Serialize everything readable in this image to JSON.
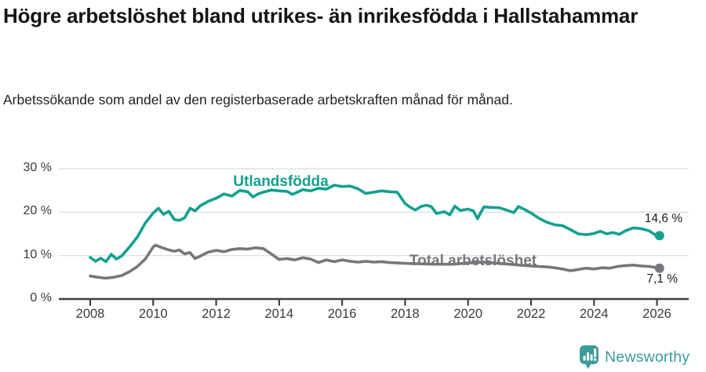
{
  "header": {
    "title": "Högre arbetslöshet bland utrikes- än inrikesfödda i Hallstahammar",
    "subtitle": "Arbetssökande som andel av den registerbaserade arbetskraften månad för månad."
  },
  "footer": {
    "brand": "Newsworthy",
    "brand_color": "#3b9d99",
    "logo_icon": "bar-chart-exclamation-badge-icon"
  },
  "chart_data": {
    "type": "line",
    "title": "Högre arbetslöshet bland utrikes- än inrikesfödda i Hallstahammar",
    "subtitle": "Arbetssökande som andel av den registerbaserade arbetskraften månad för månad.",
    "xlabel": "",
    "ylabel": "",
    "grid": "horizontal",
    "legend_position": "inline-labels",
    "xlim": [
      2007.0,
      2027.0
    ],
    "ylim": [
      0,
      30
    ],
    "y_ticks": [
      0,
      10,
      20,
      30
    ],
    "y_tick_labels": [
      "0 %",
      "10 %",
      "20 %",
      "30 %"
    ],
    "x_ticks": [
      2008,
      2010,
      2012,
      2014,
      2016,
      2018,
      2020,
      2022,
      2024,
      2026
    ],
    "x_tick_labels": [
      "2008",
      "2010",
      "2012",
      "2014",
      "2016",
      "2018",
      "2020",
      "2022",
      "2024",
      "2026"
    ],
    "axis_color": "#3f3f3f",
    "grid_color": "#d9d9d9",
    "series": [
      {
        "name": "Utlandsfödda",
        "color": "#13a08f",
        "end_label": "14,6 %",
        "end_value": 14.6,
        "label_anchor_data_coords": [
          2014.05,
          26.7
        ],
        "points": [
          [
            2008.0,
            9.6
          ],
          [
            2008.17,
            8.7
          ],
          [
            2008.33,
            9.4
          ],
          [
            2008.5,
            8.6
          ],
          [
            2008.67,
            10.3
          ],
          [
            2008.83,
            9.2
          ],
          [
            2009.0,
            9.9
          ],
          [
            2009.25,
            12.0
          ],
          [
            2009.5,
            14.3
          ],
          [
            2009.75,
            17.5
          ],
          [
            2010.0,
            19.8
          ],
          [
            2010.17,
            20.9
          ],
          [
            2010.33,
            19.5
          ],
          [
            2010.5,
            20.2
          ],
          [
            2010.67,
            18.3
          ],
          [
            2010.83,
            18.1
          ],
          [
            2011.0,
            18.7
          ],
          [
            2011.17,
            20.9
          ],
          [
            2011.33,
            20.3
          ],
          [
            2011.5,
            21.5
          ],
          [
            2011.75,
            22.5
          ],
          [
            2012.0,
            23.2
          ],
          [
            2012.25,
            24.2
          ],
          [
            2012.5,
            23.7
          ],
          [
            2012.75,
            25.0
          ],
          [
            2013.0,
            24.7
          ],
          [
            2013.17,
            23.5
          ],
          [
            2013.33,
            24.2
          ],
          [
            2013.5,
            24.6
          ],
          [
            2013.75,
            25.1
          ],
          [
            2014.0,
            24.9
          ],
          [
            2014.25,
            24.8
          ],
          [
            2014.42,
            24.1
          ],
          [
            2014.58,
            24.6
          ],
          [
            2014.75,
            25.2
          ],
          [
            2015.0,
            24.9
          ],
          [
            2015.25,
            25.5
          ],
          [
            2015.5,
            25.3
          ],
          [
            2015.75,
            26.2
          ],
          [
            2016.0,
            25.9
          ],
          [
            2016.25,
            26.0
          ],
          [
            2016.5,
            25.4
          ],
          [
            2016.75,
            24.3
          ],
          [
            2017.0,
            24.6
          ],
          [
            2017.25,
            24.9
          ],
          [
            2017.5,
            24.7
          ],
          [
            2017.75,
            24.6
          ],
          [
            2018.0,
            22.0
          ],
          [
            2018.17,
            21.1
          ],
          [
            2018.33,
            20.5
          ],
          [
            2018.5,
            21.3
          ],
          [
            2018.67,
            21.6
          ],
          [
            2018.83,
            21.3
          ],
          [
            2019.0,
            19.7
          ],
          [
            2019.25,
            20.1
          ],
          [
            2019.42,
            19.4
          ],
          [
            2019.58,
            21.4
          ],
          [
            2019.75,
            20.4
          ],
          [
            2020.0,
            20.7
          ],
          [
            2020.17,
            20.3
          ],
          [
            2020.3,
            18.5
          ],
          [
            2020.5,
            21.2
          ],
          [
            2020.75,
            21.1
          ],
          [
            2021.0,
            21.0
          ],
          [
            2021.25,
            20.4
          ],
          [
            2021.45,
            19.9
          ],
          [
            2021.6,
            21.3
          ],
          [
            2021.8,
            20.6
          ],
          [
            2022.0,
            19.8
          ],
          [
            2022.25,
            18.6
          ],
          [
            2022.5,
            17.7
          ],
          [
            2022.75,
            17.1
          ],
          [
            2023.0,
            16.9
          ],
          [
            2023.25,
            16.0
          ],
          [
            2023.5,
            15.0
          ],
          [
            2023.75,
            14.8
          ],
          [
            2024.0,
            15.1
          ],
          [
            2024.2,
            15.6
          ],
          [
            2024.4,
            15.0
          ],
          [
            2024.6,
            15.3
          ],
          [
            2024.8,
            14.9
          ],
          [
            2025.0,
            15.7
          ],
          [
            2025.25,
            16.4
          ],
          [
            2025.5,
            16.2
          ],
          [
            2025.75,
            15.7
          ],
          [
            2026.0,
            14.5
          ],
          [
            2026.08,
            14.6
          ]
        ]
      },
      {
        "name": "Total arbetslöshet",
        "color": "#76777b",
        "end_label": "7,1 %",
        "end_value": 7.1,
        "label_anchor_data_coords": [
          2020.1,
          8.4
        ],
        "points": [
          [
            2008.0,
            5.3
          ],
          [
            2008.25,
            5.0
          ],
          [
            2008.5,
            4.8
          ],
          [
            2008.75,
            5.0
          ],
          [
            2009.0,
            5.4
          ],
          [
            2009.25,
            6.3
          ],
          [
            2009.5,
            7.5
          ],
          [
            2009.75,
            9.2
          ],
          [
            2010.0,
            12.0
          ],
          [
            2010.08,
            12.4
          ],
          [
            2010.25,
            11.9
          ],
          [
            2010.5,
            11.3
          ],
          [
            2010.67,
            11.0
          ],
          [
            2010.83,
            11.3
          ],
          [
            2011.0,
            10.4
          ],
          [
            2011.17,
            10.7
          ],
          [
            2011.33,
            9.3
          ],
          [
            2011.5,
            9.9
          ],
          [
            2011.75,
            10.8
          ],
          [
            2012.0,
            11.2
          ],
          [
            2012.25,
            10.9
          ],
          [
            2012.5,
            11.4
          ],
          [
            2012.75,
            11.6
          ],
          [
            2013.0,
            11.5
          ],
          [
            2013.25,
            11.8
          ],
          [
            2013.5,
            11.6
          ],
          [
            2013.75,
            10.4
          ],
          [
            2014.0,
            9.1
          ],
          [
            2014.25,
            9.3
          ],
          [
            2014.5,
            9.0
          ],
          [
            2014.75,
            9.5
          ],
          [
            2015.0,
            9.2
          ],
          [
            2015.25,
            8.4
          ],
          [
            2015.5,
            9.0
          ],
          [
            2015.75,
            8.6
          ],
          [
            2016.0,
            9.0
          ],
          [
            2016.25,
            8.7
          ],
          [
            2016.5,
            8.5
          ],
          [
            2016.75,
            8.7
          ],
          [
            2017.0,
            8.5
          ],
          [
            2017.25,
            8.6
          ],
          [
            2017.5,
            8.4
          ],
          [
            2017.75,
            8.3
          ],
          [
            2018.0,
            8.2
          ],
          [
            2018.5,
            8.1
          ],
          [
            2019.0,
            8.0
          ],
          [
            2019.5,
            8.0
          ],
          [
            2020.0,
            8.3
          ],
          [
            2020.5,
            8.5
          ],
          [
            2021.0,
            8.2
          ],
          [
            2021.5,
            7.9
          ],
          [
            2022.0,
            7.6
          ],
          [
            2022.25,
            7.5
          ],
          [
            2022.5,
            7.4
          ],
          [
            2022.75,
            7.2
          ],
          [
            2023.0,
            6.9
          ],
          [
            2023.25,
            6.5
          ],
          [
            2023.5,
            6.8
          ],
          [
            2023.75,
            7.1
          ],
          [
            2024.0,
            6.9
          ],
          [
            2024.25,
            7.2
          ],
          [
            2024.5,
            7.1
          ],
          [
            2024.75,
            7.5
          ],
          [
            2025.0,
            7.7
          ],
          [
            2025.25,
            7.8
          ],
          [
            2025.5,
            7.6
          ],
          [
            2025.75,
            7.5
          ],
          [
            2026.0,
            7.2
          ],
          [
            2026.08,
            7.1
          ]
        ]
      }
    ]
  }
}
